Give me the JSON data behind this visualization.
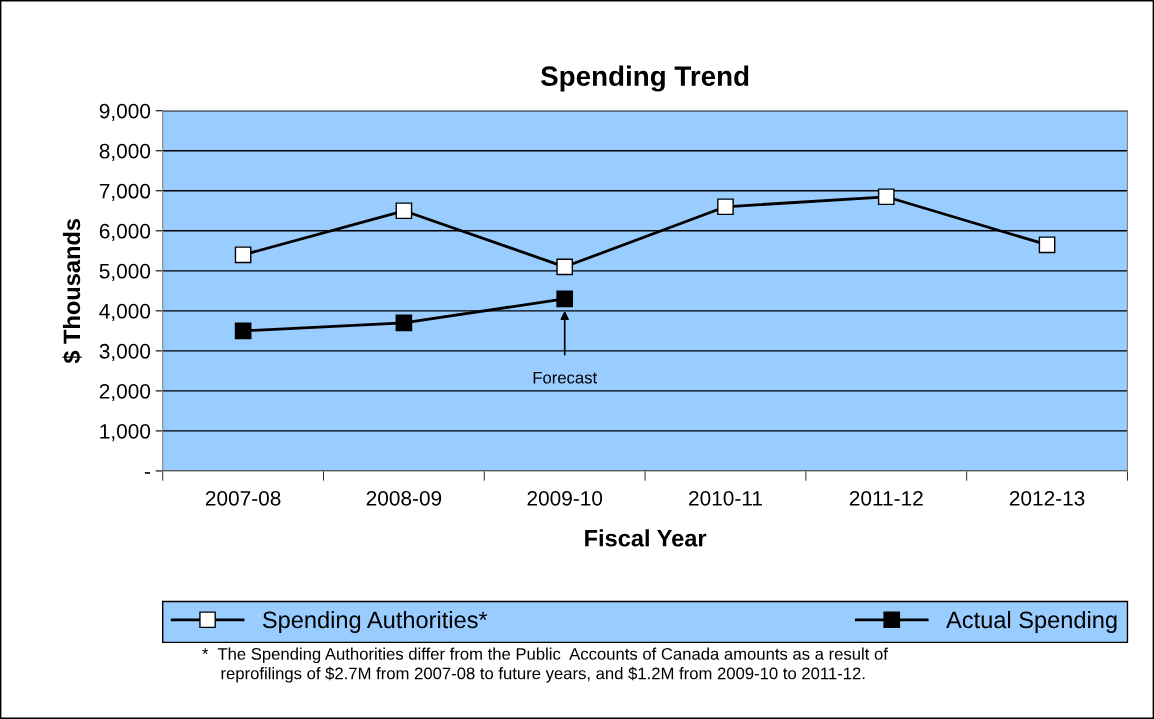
{
  "chart_data": {
    "type": "line",
    "title": "Spending Trend",
    "xlabel": "Fiscal Year",
    "ylabel": "$ Thousands",
    "categories": [
      "2007-08",
      "2008-09",
      "2009-10",
      "2010-11",
      "2011-12",
      "2012-13"
    ],
    "series": [
      {
        "name": "Spending Authorities*",
        "color": "#ffffff",
        "values": [
          5400,
          6500,
          5100,
          6600,
          6850,
          5650
        ]
      },
      {
        "name": "Actual Spending",
        "color": "#000000",
        "values": [
          3500,
          3700,
          4300,
          null,
          null,
          null
        ]
      }
    ],
    "ylim": [
      0,
      9000
    ],
    "yticks": [
      {
        "value": 0,
        "label": "-"
      },
      {
        "value": 1000,
        "label": "1,000"
      },
      {
        "value": 2000,
        "label": "2,000"
      },
      {
        "value": 3000,
        "label": "3,000"
      },
      {
        "value": 4000,
        "label": "4,000"
      },
      {
        "value": 5000,
        "label": "5,000"
      },
      {
        "value": 6000,
        "label": "6,000"
      },
      {
        "value": 7000,
        "label": "7,000"
      },
      {
        "value": 8000,
        "label": "8,000"
      },
      {
        "value": 9000,
        "label": "9,000"
      }
    ],
    "grid": "y",
    "legend": "bottom",
    "marker": "square",
    "line_style": "solid",
    "annotations": [
      "Forecast",
      "*  The Spending Authorities differ from the Public  Accounts of Canada amounts as a result of\n    reprofilings of $2.7M from 2007-08 to future years, and $1.2M from 2009-10 to 2011-12."
    ]
  }
}
